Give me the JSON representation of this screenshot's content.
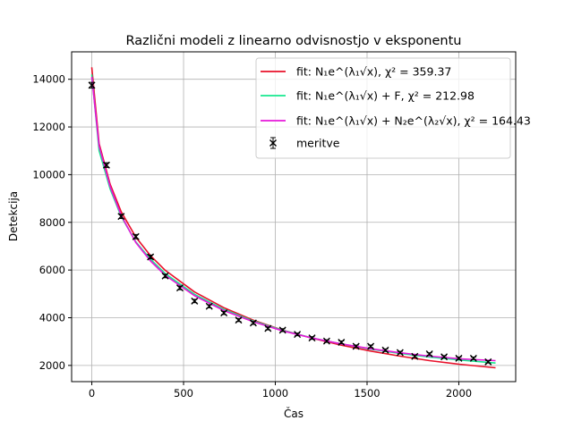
{
  "chart_data": {
    "type": "scatter",
    "title": "Različni modeli z linearno odvisnostjo v eksponentu",
    "xlabel": "Čas",
    "ylabel": "Detekcija",
    "xlim": [
      -110,
      2310
    ],
    "ylim": [
      1320,
      15150
    ],
    "xticks": [
      0,
      500,
      1000,
      1500,
      2000
    ],
    "yticks": [
      2000,
      4000,
      6000,
      8000,
      10000,
      12000,
      14000
    ],
    "grid": true,
    "legend_position": "top-right",
    "measurements": {
      "name": "meritve",
      "color": "#000000",
      "marker": "x",
      "x": [
        0,
        80,
        160,
        240,
        320,
        400,
        480,
        560,
        640,
        720,
        800,
        880,
        960,
        1040,
        1120,
        1200,
        1280,
        1360,
        1440,
        1520,
        1600,
        1680,
        1760,
        1840,
        1920,
        2000,
        2080,
        2160
      ],
      "y": [
        13750,
        10400,
        8250,
        7400,
        6550,
        5750,
        5250,
        4700,
        4480,
        4200,
        3900,
        3780,
        3550,
        3480,
        3300,
        3150,
        3020,
        2970,
        2800,
        2800,
        2640,
        2540,
        2380,
        2480,
        2360,
        2300,
        2300,
        2150
      ],
      "yerr": [
        120,
        100,
        90,
        90,
        80,
        75,
        75,
        70,
        65,
        65,
        60,
        60,
        60,
        60,
        55,
        55,
        55,
        55,
        55,
        55,
        50,
        50,
        50,
        50,
        50,
        50,
        50,
        50
      ]
    },
    "series": [
      {
        "name": "fit: N₁e^(λ₁√x), χ² = 359.37",
        "color": "#e8102a",
        "x": [
          0,
          40,
          100,
          160,
          240,
          320,
          400,
          560,
          720,
          880,
          1040,
          1200,
          1360,
          1520,
          1680,
          1840,
          2000,
          2200
        ],
        "y": [
          14500,
          11300,
          9600,
          8450,
          7380,
          6600,
          5990,
          5080,
          4420,
          3900,
          3480,
          3140,
          2850,
          2600,
          2390,
          2200,
          2050,
          1900
        ]
      },
      {
        "name": "fit: N₁e^(λ₁√x) + F, χ² = 212.98",
        "color": "#17e88f",
        "x": [
          0,
          40,
          100,
          160,
          240,
          320,
          400,
          560,
          720,
          880,
          1040,
          1200,
          1360,
          1520,
          1680,
          1840,
          2000,
          2200
        ],
        "y": [
          14200,
          11000,
          9400,
          8250,
          7180,
          6450,
          5850,
          4980,
          4350,
          3860,
          3470,
          3150,
          2900,
          2680,
          2500,
          2350,
          2230,
          2100
        ]
      },
      {
        "name": "fit: N₁e^(λ₁√x) + N₂e^(λ₂√x), χ² = 164.43",
        "color": "#e617d9",
        "x": [
          0,
          40,
          100,
          160,
          240,
          320,
          400,
          560,
          720,
          880,
          1040,
          1200,
          1360,
          1520,
          1680,
          1840,
          2000,
          2200
        ],
        "y": [
          14100,
          11200,
          9500,
          8300,
          7150,
          6380,
          5780,
          4920,
          4300,
          3830,
          3450,
          3150,
          2900,
          2700,
          2530,
          2390,
          2280,
          2200
        ]
      }
    ],
    "legend": [
      {
        "prefix": "fit: ",
        "formula": "N₁e^(λ₁√x)",
        "chi_label": "χ² = 359.37",
        "color": "#e8102a"
      },
      {
        "prefix": "fit: ",
        "formula": "N₁e^(λ₁√x) + F",
        "chi_label": "χ² = 212.98",
        "color": "#17e88f"
      },
      {
        "prefix": "fit: ",
        "formula": "N₁e^(λ₁√x) + N₂e^(λ₂√x)",
        "chi_label": "χ² = 164.43",
        "color": "#e617d9"
      },
      {
        "prefix": "meritve",
        "formula": "",
        "chi_label": "",
        "color": "#000000"
      }
    ]
  }
}
